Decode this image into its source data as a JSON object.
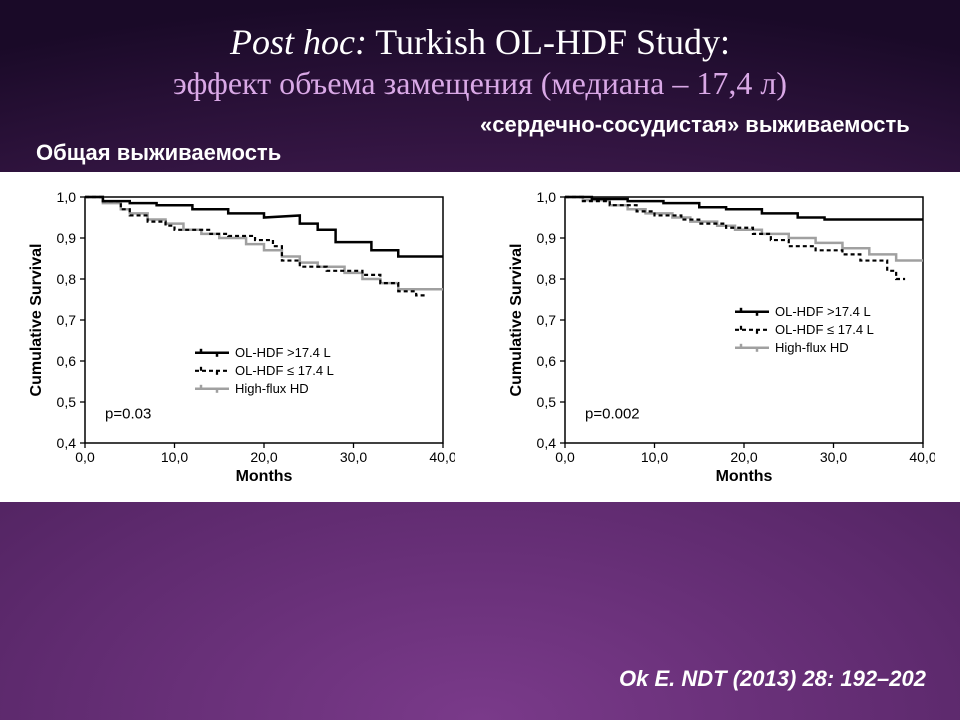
{
  "title": {
    "line1_italic": "Post hoc:",
    "line1_rest": " Turkish OL-HDF Study:",
    "line2": "эффект объема замещения (медиана – 17,4 л)"
  },
  "labels": {
    "left": "Общая выживаемость",
    "right": "«сердечно-сосудистая» выживаемость"
  },
  "citation": "Ok E. NDT (2013) 28: 192–202",
  "axes": {
    "ylabel": "Cumulative Survival",
    "xlabel": "Months",
    "yticks": [
      "0,4",
      "0,5",
      "0,6",
      "0,7",
      "0,8",
      "0,9",
      "1,0"
    ],
    "yvals": [
      0.4,
      0.5,
      0.6,
      0.7,
      0.8,
      0.9,
      1.0
    ],
    "xticks": [
      "0,0",
      "10,0",
      "20,0",
      "30,0",
      "40,0"
    ],
    "xvals": [
      0,
      10,
      20,
      30,
      40
    ],
    "axis_color": "#000000",
    "grid": false,
    "tick_len": 5,
    "font_size": 14,
    "label_font_size": 16
  },
  "legend": {
    "items": [
      {
        "label": "OL-HDF >17.4 L",
        "color": "#000000",
        "dash": null,
        "weight": 2.5
      },
      {
        "label": "OL-HDF ≤ 17.4 L",
        "color": "#000000",
        "dash": "4 3",
        "weight": 2.2
      },
      {
        "label": "High-flux HD",
        "color": "#a0a0a0",
        "dash": null,
        "weight": 2.5
      }
    ],
    "fontsize": 13
  },
  "chart_left": {
    "p_text": "p=0.03",
    "legend_pos": "inside-lower-middle",
    "series": {
      "hdf_high": {
        "color": "#000000",
        "dash": null,
        "weight": 2.5,
        "points": [
          [
            0,
            1.0
          ],
          [
            2,
            1.0
          ],
          [
            2,
            0.99
          ],
          [
            5,
            0.99
          ],
          [
            5,
            0.985
          ],
          [
            8,
            0.985
          ],
          [
            8,
            0.98
          ],
          [
            12,
            0.98
          ],
          [
            12,
            0.97
          ],
          [
            16,
            0.97
          ],
          [
            16,
            0.96
          ],
          [
            20,
            0.96
          ],
          [
            20,
            0.95
          ],
          [
            24,
            0.955
          ],
          [
            24,
            0.935
          ],
          [
            26,
            0.935
          ],
          [
            26,
            0.92
          ],
          [
            28,
            0.92
          ],
          [
            28,
            0.89
          ],
          [
            32,
            0.89
          ],
          [
            32,
            0.87
          ],
          [
            35,
            0.87
          ],
          [
            35,
            0.855
          ],
          [
            40,
            0.855
          ]
        ]
      },
      "hdf_low": {
        "color": "#000000",
        "dash": "4 3",
        "weight": 2.2,
        "points": [
          [
            0,
            1.0
          ],
          [
            2,
            1.0
          ],
          [
            2,
            0.99
          ],
          [
            4,
            0.99
          ],
          [
            4,
            0.97
          ],
          [
            5,
            0.97
          ],
          [
            5,
            0.955
          ],
          [
            7,
            0.955
          ],
          [
            7,
            0.94
          ],
          [
            9,
            0.94
          ],
          [
            9,
            0.93
          ],
          [
            10,
            0.93
          ],
          [
            10,
            0.92
          ],
          [
            14,
            0.92
          ],
          [
            14,
            0.91
          ],
          [
            16,
            0.91
          ],
          [
            16,
            0.905
          ],
          [
            19,
            0.905
          ],
          [
            19,
            0.895
          ],
          [
            21,
            0.895
          ],
          [
            21,
            0.88
          ],
          [
            22,
            0.88
          ],
          [
            22,
            0.845
          ],
          [
            24,
            0.845
          ],
          [
            24,
            0.83
          ],
          [
            27,
            0.83
          ],
          [
            27,
            0.82
          ],
          [
            31,
            0.82
          ],
          [
            31,
            0.81
          ],
          [
            33,
            0.81
          ],
          [
            33,
            0.79
          ],
          [
            35,
            0.79
          ],
          [
            35,
            0.77
          ],
          [
            37,
            0.77
          ],
          [
            37,
            0.76
          ],
          [
            38,
            0.76
          ]
        ]
      },
      "hflux": {
        "color": "#a0a0a0",
        "dash": null,
        "weight": 2.5,
        "points": [
          [
            0,
            1.0
          ],
          [
            2,
            1.0
          ],
          [
            2,
            0.985
          ],
          [
            4,
            0.985
          ],
          [
            4,
            0.97
          ],
          [
            5,
            0.97
          ],
          [
            5,
            0.96
          ],
          [
            7,
            0.96
          ],
          [
            7,
            0.945
          ],
          [
            9,
            0.945
          ],
          [
            9,
            0.935
          ],
          [
            11,
            0.935
          ],
          [
            11,
            0.92
          ],
          [
            13,
            0.92
          ],
          [
            13,
            0.91
          ],
          [
            15,
            0.91
          ],
          [
            15,
            0.9
          ],
          [
            18,
            0.9
          ],
          [
            18,
            0.885
          ],
          [
            20,
            0.885
          ],
          [
            20,
            0.87
          ],
          [
            22,
            0.87
          ],
          [
            22,
            0.855
          ],
          [
            24,
            0.855
          ],
          [
            24,
            0.84
          ],
          [
            26,
            0.84
          ],
          [
            26,
            0.83
          ],
          [
            29,
            0.83
          ],
          [
            29,
            0.815
          ],
          [
            31,
            0.815
          ],
          [
            31,
            0.8
          ],
          [
            33,
            0.8
          ],
          [
            33,
            0.79
          ],
          [
            35,
            0.79
          ],
          [
            35,
            0.775
          ],
          [
            40,
            0.775
          ]
        ]
      }
    }
  },
  "chart_right": {
    "p_text": "p=0.002",
    "legend_pos": "inside-middle-right",
    "series": {
      "hdf_high": {
        "color": "#000000",
        "dash": null,
        "weight": 2.5,
        "points": [
          [
            0,
            1.0
          ],
          [
            3,
            1.0
          ],
          [
            3,
            0.995
          ],
          [
            7,
            0.995
          ],
          [
            7,
            0.99
          ],
          [
            11,
            0.99
          ],
          [
            11,
            0.985
          ],
          [
            15,
            0.985
          ],
          [
            15,
            0.975
          ],
          [
            18,
            0.975
          ],
          [
            18,
            0.97
          ],
          [
            22,
            0.97
          ],
          [
            22,
            0.96
          ],
          [
            26,
            0.96
          ],
          [
            26,
            0.95
          ],
          [
            29,
            0.95
          ],
          [
            29,
            0.945
          ],
          [
            40,
            0.945
          ]
        ]
      },
      "hdf_low": {
        "color": "#000000",
        "dash": "4 3",
        "weight": 2.2,
        "points": [
          [
            0,
            1.0
          ],
          [
            2,
            1.0
          ],
          [
            2,
            0.99
          ],
          [
            5,
            0.99
          ],
          [
            5,
            0.98
          ],
          [
            8,
            0.98
          ],
          [
            8,
            0.965
          ],
          [
            10,
            0.965
          ],
          [
            10,
            0.955
          ],
          [
            13,
            0.955
          ],
          [
            13,
            0.945
          ],
          [
            15,
            0.945
          ],
          [
            15,
            0.935
          ],
          [
            18,
            0.935
          ],
          [
            18,
            0.925
          ],
          [
            21,
            0.925
          ],
          [
            21,
            0.91
          ],
          [
            23,
            0.91
          ],
          [
            23,
            0.895
          ],
          [
            25,
            0.895
          ],
          [
            25,
            0.88
          ],
          [
            28,
            0.88
          ],
          [
            28,
            0.87
          ],
          [
            31,
            0.87
          ],
          [
            31,
            0.86
          ],
          [
            33,
            0.86
          ],
          [
            33,
            0.845
          ],
          [
            36,
            0.845
          ],
          [
            36,
            0.82
          ],
          [
            37,
            0.82
          ],
          [
            37,
            0.8
          ],
          [
            38,
            0.8
          ]
        ]
      },
      "hflux": {
        "color": "#a0a0a0",
        "dash": null,
        "weight": 2.5,
        "points": [
          [
            0,
            1.0
          ],
          [
            2,
            1.0
          ],
          [
            2,
            0.992
          ],
          [
            5,
            0.992
          ],
          [
            5,
            0.98
          ],
          [
            7,
            0.98
          ],
          [
            7,
            0.97
          ],
          [
            9,
            0.97
          ],
          [
            9,
            0.96
          ],
          [
            12,
            0.96
          ],
          [
            12,
            0.95
          ],
          [
            14,
            0.95
          ],
          [
            14,
            0.94
          ],
          [
            17,
            0.94
          ],
          [
            17,
            0.93
          ],
          [
            19,
            0.93
          ],
          [
            19,
            0.92
          ],
          [
            22,
            0.92
          ],
          [
            22,
            0.91
          ],
          [
            25,
            0.91
          ],
          [
            25,
            0.9
          ],
          [
            28,
            0.9
          ],
          [
            28,
            0.888
          ],
          [
            31,
            0.888
          ],
          [
            31,
            0.875
          ],
          [
            34,
            0.875
          ],
          [
            34,
            0.86
          ],
          [
            37,
            0.86
          ],
          [
            37,
            0.845
          ],
          [
            40,
            0.845
          ]
        ]
      }
    }
  }
}
